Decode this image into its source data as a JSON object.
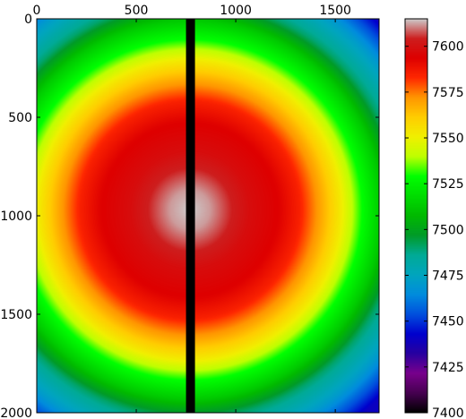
{
  "chart_data": {
    "type": "heatmap",
    "title": "",
    "xlabel": "",
    "ylabel": "",
    "x_ticks": [
      0,
      500,
      1000,
      1500
    ],
    "y_ticks": [
      0,
      500,
      1000,
      1500,
      2000
    ],
    "xlim": [
      0,
      1720
    ],
    "ylim": [
      2000,
      0
    ],
    "x_axis_position": "top",
    "grid": false,
    "colormap": "nipy_spectral",
    "colorbar": {
      "range": [
        7400,
        7615
      ],
      "ticks": [
        7400,
        7425,
        7450,
        7475,
        7500,
        7525,
        7550,
        7575,
        7600
      ],
      "position": "right"
    },
    "field": {
      "shape": "radial",
      "center": [
        770,
        970
      ],
      "center_value": 7615,
      "radial_profile": [
        [
          0,
          7615
        ],
        [
          100,
          7612
        ],
        [
          200,
          7605
        ],
        [
          300,
          7598
        ],
        [
          450,
          7593
        ],
        [
          550,
          7585
        ],
        [
          650,
          7570
        ],
        [
          760,
          7552
        ],
        [
          860,
          7530
        ],
        [
          960,
          7513
        ],
        [
          1060,
          7490
        ],
        [
          1200,
          7470
        ],
        [
          1350,
          7440
        ]
      ]
    },
    "masked_column": {
      "x_range": [
        750,
        795
      ],
      "color": "#000000"
    }
  }
}
